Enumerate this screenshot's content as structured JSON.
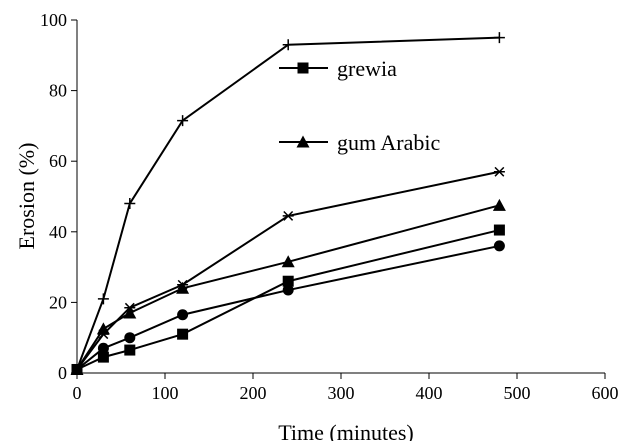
{
  "chart_data": {
    "type": "line",
    "title": "",
    "xlabel": "Time (minutes)",
    "ylabel": "Erosion (%)",
    "xlim": [
      0,
      600
    ],
    "ylim": [
      0,
      100
    ],
    "xticks": [
      0,
      100,
      200,
      300,
      400,
      500,
      600
    ],
    "yticks": [
      0,
      20,
      40,
      60,
      80,
      100
    ],
    "grid": false,
    "x": [
      0,
      30,
      60,
      120,
      240,
      480
    ],
    "series": [
      {
        "name": "grewia",
        "marker": "square",
        "values": [
          1,
          4.5,
          6.5,
          11,
          26,
          40.5
        ]
      },
      {
        "name": "gum Arabic",
        "marker": "triangle",
        "values": [
          1,
          12.5,
          17,
          24,
          31.5,
          47.5
        ]
      },
      {
        "name": "",
        "marker": "plus",
        "values": [
          1,
          21,
          48,
          71.5,
          93,
          95
        ]
      },
      {
        "name": "",
        "marker": "star",
        "values": [
          1,
          11,
          18.5,
          25,
          44.5,
          57
        ]
      },
      {
        "name": "",
        "marker": "circle",
        "values": [
          1,
          7,
          10,
          16.5,
          23.5,
          36
        ]
      }
    ],
    "legend": {
      "placement": "top-center-inside"
    }
  }
}
